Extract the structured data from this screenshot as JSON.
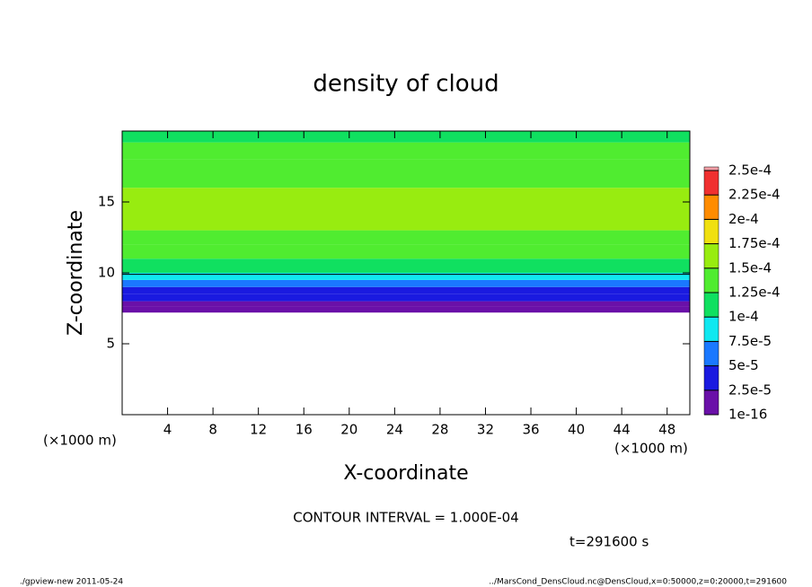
{
  "chart_data": {
    "type": "contour",
    "title": "density of cloud",
    "xlabel": "X-coordinate",
    "ylabel": "Z-coordinate",
    "x_unit": "(×1000 m)",
    "x_unit_right": "(×1000 m)",
    "xlim": [
      0,
      50
    ],
    "ylim": [
      0,
      20
    ],
    "xticks": [
      4,
      8,
      12,
      16,
      20,
      24,
      28,
      32,
      36,
      40,
      44,
      48
    ],
    "yticks": [
      5,
      10,
      15
    ],
    "z": [
      7.2,
      7.6,
      8.0,
      8.5,
      9.0,
      9.5,
      10.0,
      11,
      12,
      13,
      16,
      18,
      19.2
    ],
    "values": [
      5e-06,
      1.5e-05,
      3e-05,
      4.5e-05,
      6e-05,
      8e-05,
      0.000105,
      0.000125,
      0.00014,
      0.00015,
      0.000145,
      0.00013,
      0.000115
    ],
    "contour_level": 0.0001,
    "levels": [
      {
        "value": 1e-16,
        "label": "1e-16"
      },
      {
        "value": 2.5e-05,
        "label": "2.5e-5"
      },
      {
        "value": 5e-05,
        "label": "5e-5"
      },
      {
        "value": 7.5e-05,
        "label": "7.5e-5"
      },
      {
        "value": 0.0001,
        "label": "1e-4"
      },
      {
        "value": 0.000125,
        "label": "1.25e-4"
      },
      {
        "value": 0.00015,
        "label": "1.5e-4"
      },
      {
        "value": 0.000175,
        "label": "1.75e-4"
      },
      {
        "value": 0.0002,
        "label": "2e-4"
      },
      {
        "value": 0.000225,
        "label": "2.25e-4"
      },
      {
        "value": 0.00025,
        "label": "2.5e-4"
      }
    ],
    "colors": [
      "#6a10a8",
      "#1a1ae0",
      "#1a78ff",
      "#10e8f0",
      "#10e060",
      "#50ec30",
      "#98ec10",
      "#f0e010",
      "#ff8c00",
      "#f03030",
      "#f8a0a8"
    ],
    "contour_interval": "CONTOUR INTERVAL = 1.000E-04",
    "time": "t=291600 s",
    "footer_left": "./gpview-new  2011-05-24",
    "footer_right": "../MarsCond_DensCloud.nc@DensCloud,x=0:50000,z=0:20000,t=291600"
  }
}
